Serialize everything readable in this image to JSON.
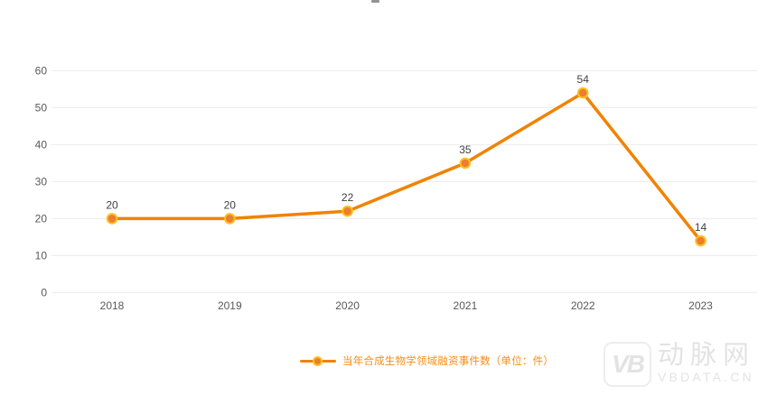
{
  "chart_data": {
    "type": "line",
    "categories": [
      "2018",
      "2019",
      "2020",
      "2021",
      "2022",
      "2023"
    ],
    "series": [
      {
        "name": "当年合成生物学领域融资事件数（单位：件）",
        "values": [
          20,
          20,
          22,
          35,
          54,
          14
        ]
      }
    ],
    "title": "",
    "xlabel": "",
    "ylabel": "",
    "ylim": [
      0,
      60
    ],
    "ytick_step": 10,
    "yticks": [
      0,
      10,
      20,
      30,
      40,
      50,
      60
    ],
    "grid": true,
    "data_labels": true,
    "legend_position": "bottom"
  },
  "legend": {
    "label": "当年合成生物学领域融资事件数（单位：件）"
  },
  "watermark": {
    "mark": "VB",
    "brand": "动脉网",
    "site": "VBDATA.CN"
  },
  "colors": {
    "background": "#FFFFFF",
    "line": "#F08300",
    "marker_fill": "#ED7D31",
    "marker_ring": "#FFC01E",
    "legend_text": "#FA8C16",
    "axis_label": "#595959",
    "value_label": "#404040",
    "gridline": "#ECECEC",
    "watermark": "#E3E3E3"
  }
}
